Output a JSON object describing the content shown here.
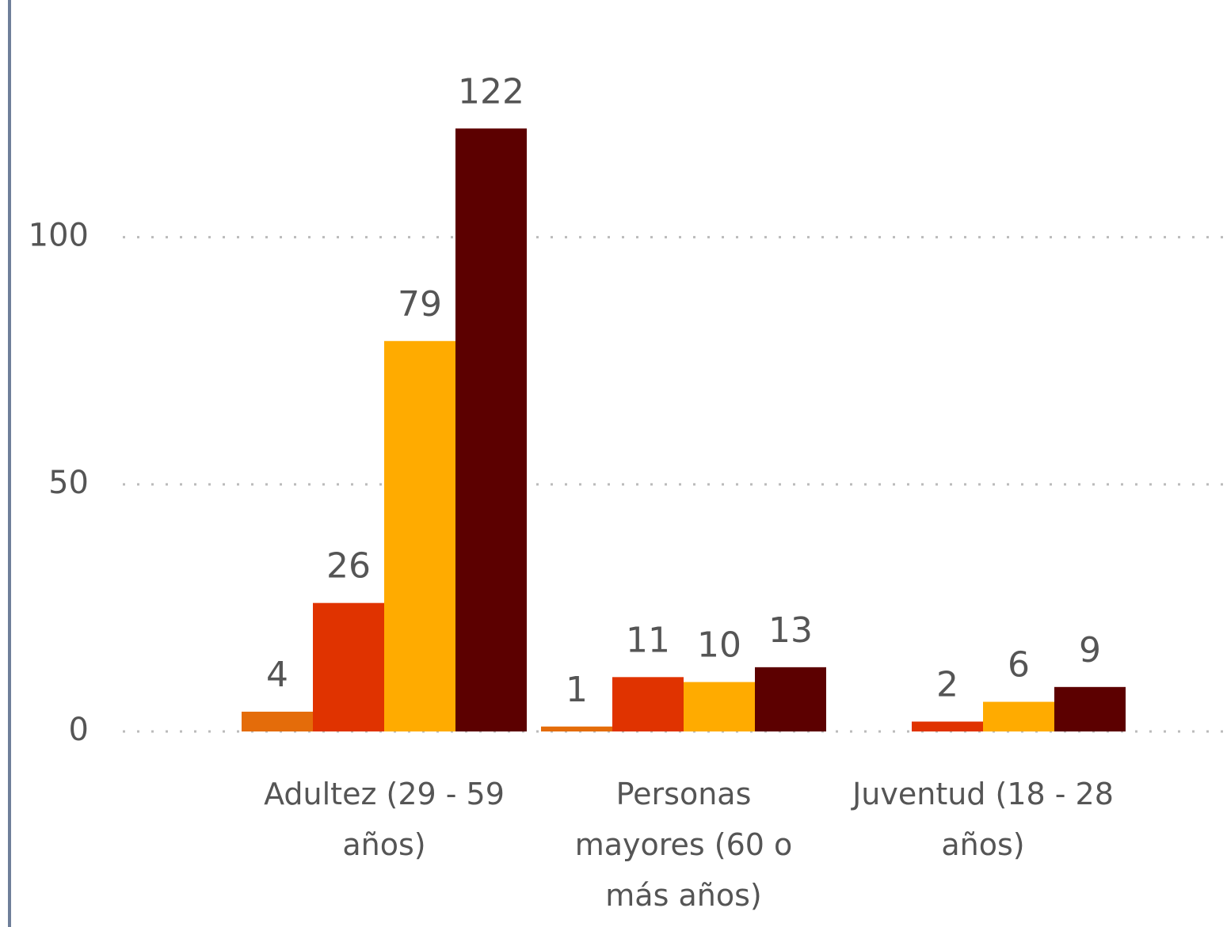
{
  "chart_data": {
    "type": "bar",
    "categories": [
      "Adultez (29 - 59 años)",
      "Personas mayores (60 o más años)",
      "Juventud (18 - 28 años)"
    ],
    "series": [
      {
        "color": "#e46c0a",
        "values": [
          4,
          1,
          null
        ]
      },
      {
        "color": "#e03300",
        "values": [
          26,
          11,
          2
        ]
      },
      {
        "color": "#ffab00",
        "values": [
          79,
          10,
          6
        ]
      },
      {
        "color": "#5c0000",
        "values": [
          122,
          13,
          9
        ]
      }
    ],
    "ylim": [
      0,
      148
    ],
    "yticks": [
      0,
      50,
      100
    ],
    "grid": true
  }
}
